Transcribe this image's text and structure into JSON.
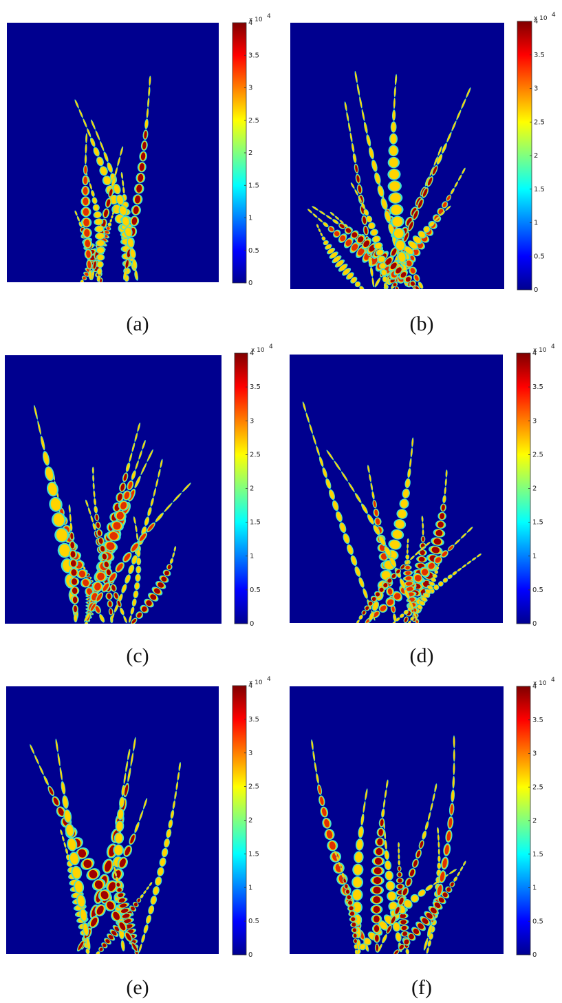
{
  "panels": [
    {
      "label": "(a)"
    },
    {
      "label": "(b)"
    },
    {
      "label": "(c)"
    },
    {
      "label": "(d)"
    },
    {
      "label": "(e)"
    },
    {
      "label": "(f)"
    }
  ],
  "colorbar": {
    "multiplier": "x 10",
    "exponent": "4",
    "ticks": [
      "0",
      "0.5",
      "1",
      "1.5",
      "2",
      "2.5",
      "3",
      "3.5",
      "4"
    ]
  }
}
